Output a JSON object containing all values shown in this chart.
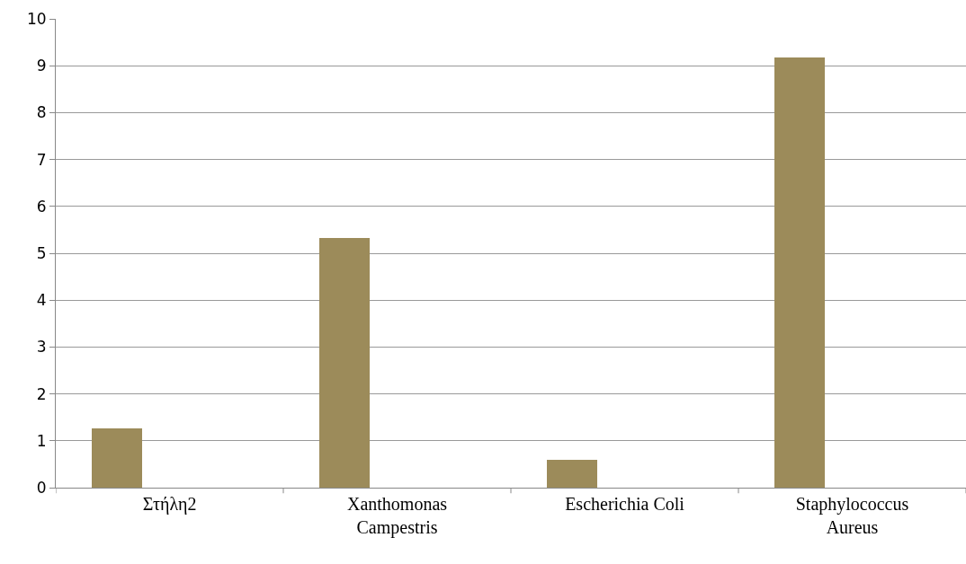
{
  "chart_data": {
    "type": "bar",
    "categories": [
      "Στήλη2",
      "Xanthomonas Campestris",
      "Escherichia Coli",
      "Staphylococcus Aureus"
    ],
    "values": [
      1.27,
      5.32,
      0.6,
      9.17
    ],
    "color": "#9c8b5a",
    "ylim": [
      0,
      10
    ],
    "yticks": [
      0,
      1,
      2,
      3,
      4,
      5,
      6,
      7,
      8,
      9,
      10
    ],
    "grid": "y"
  }
}
